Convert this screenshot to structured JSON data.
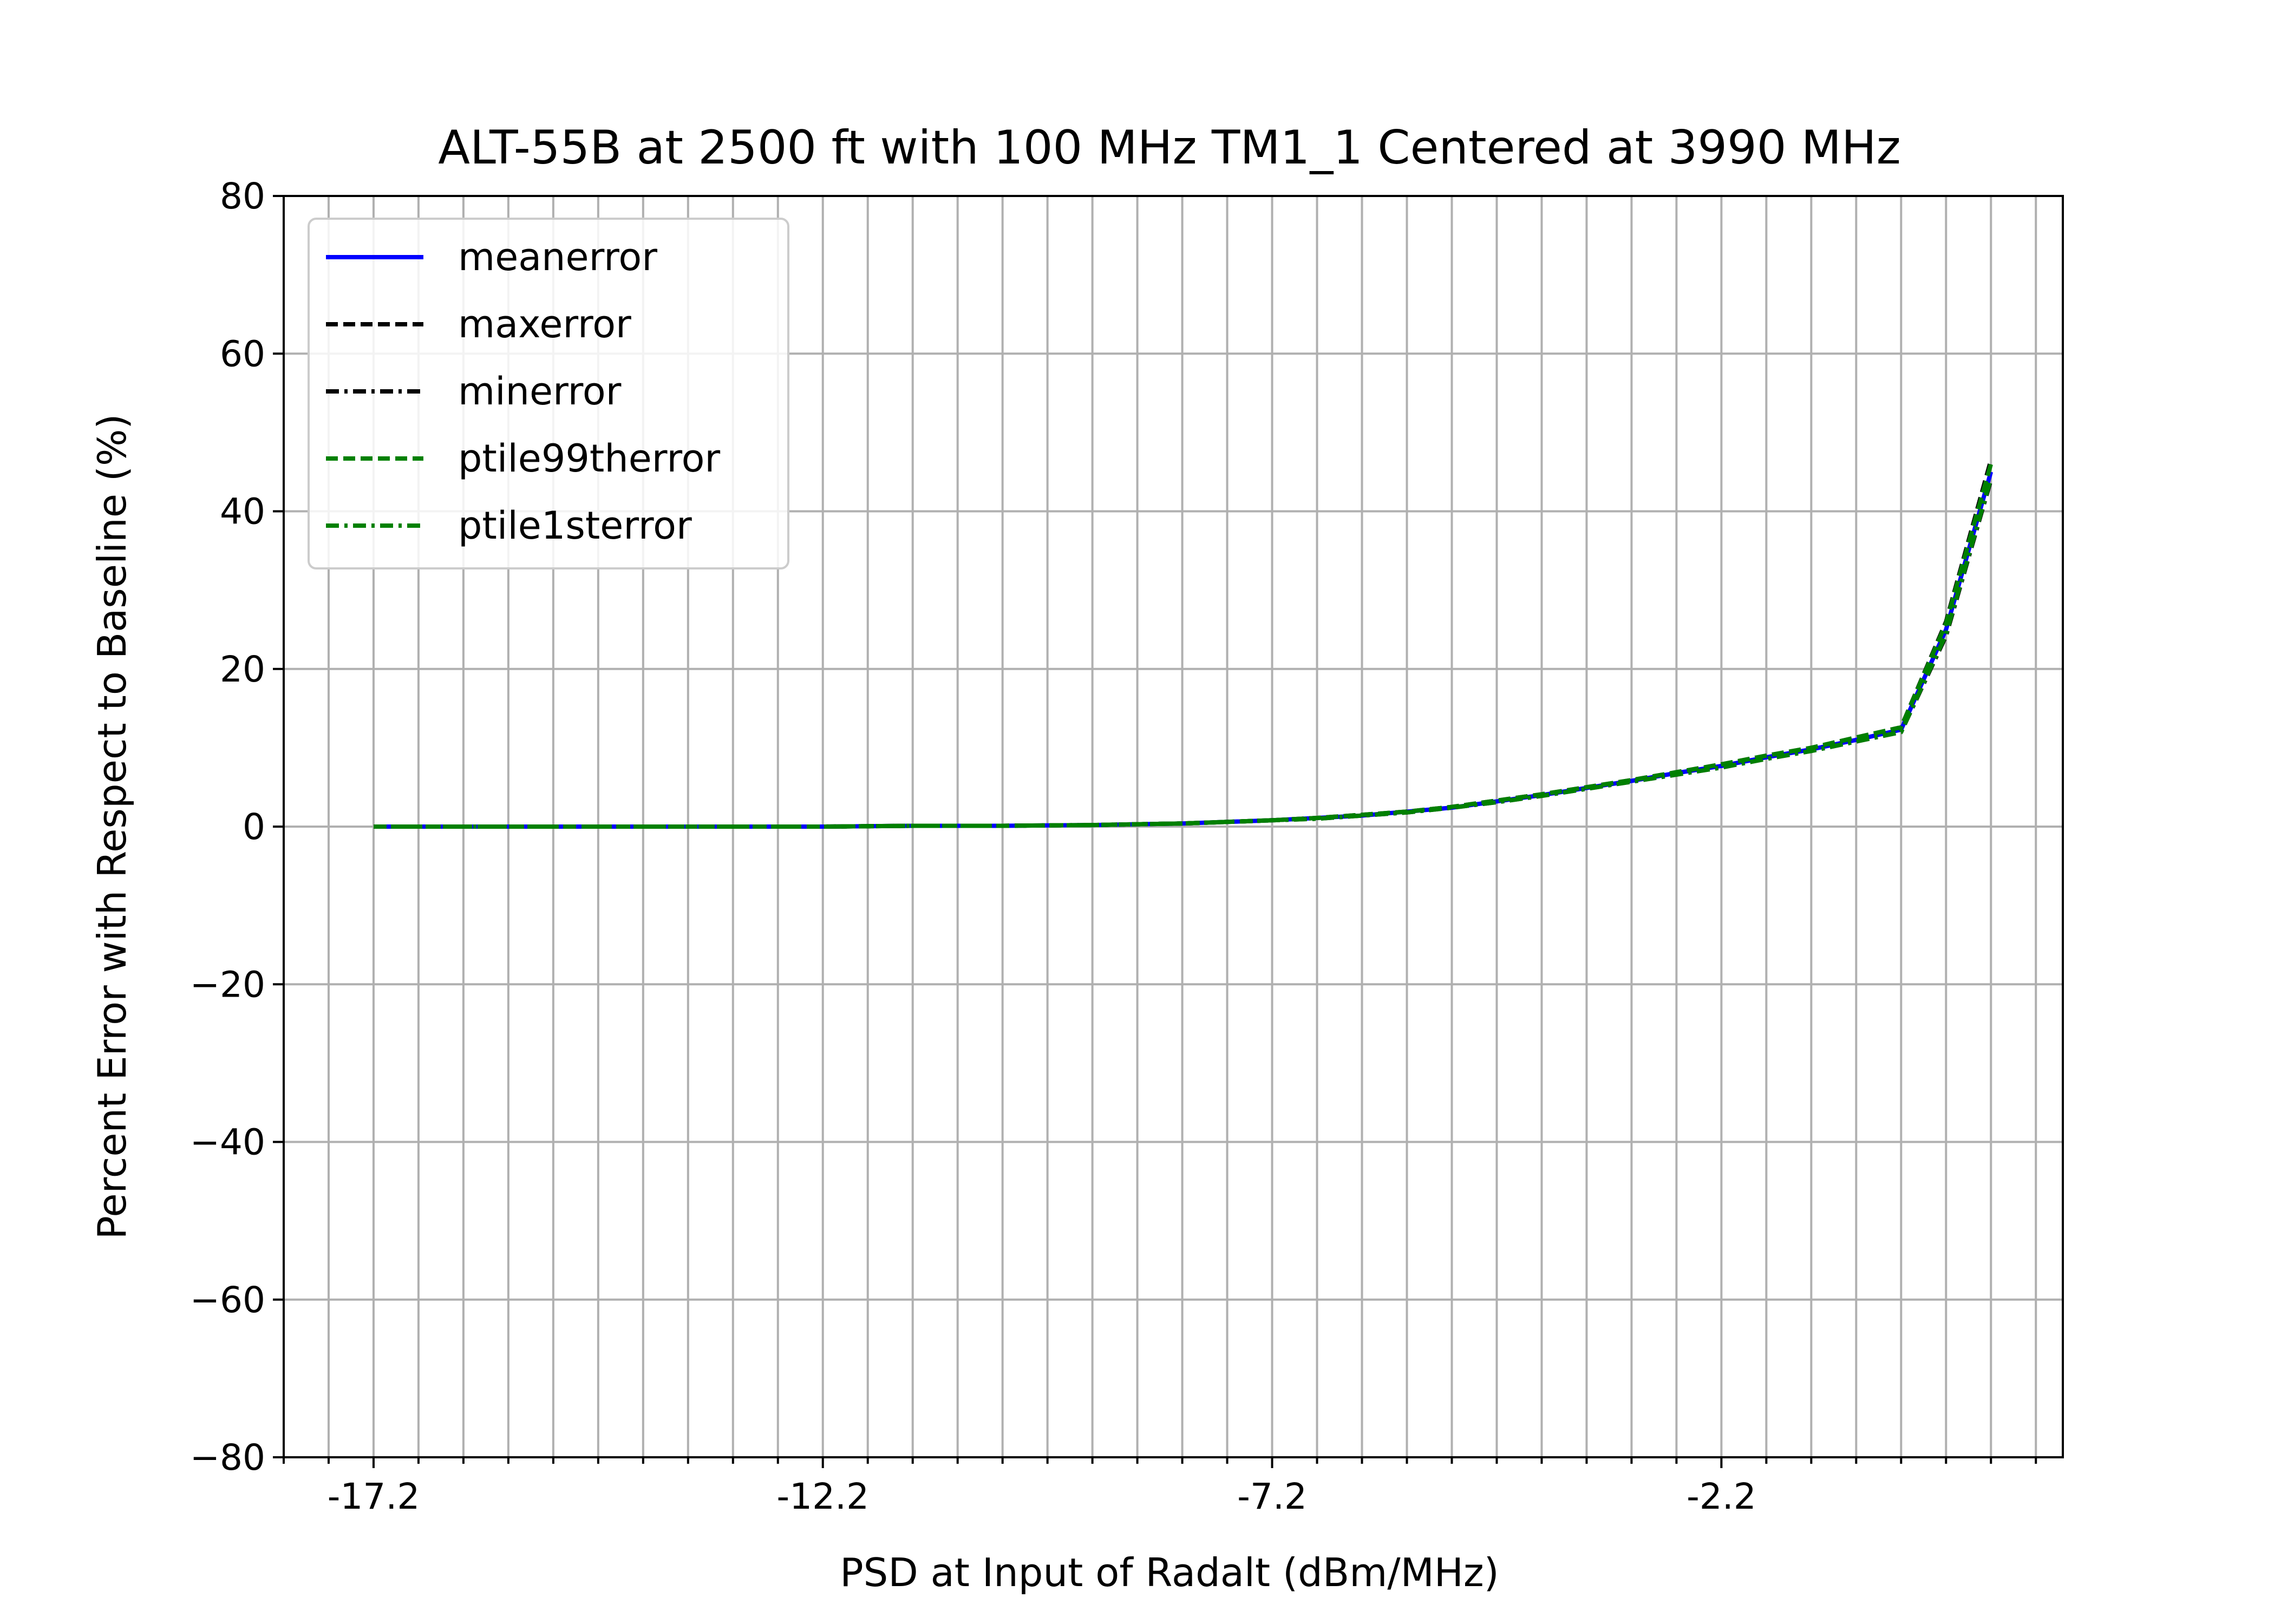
{
  "chart_data": {
    "type": "line",
    "title": "ALT-55B at 2500 ft with 100 MHz TM1_1 Centered at 3990 MHz",
    "xlabel": "PSD at Input of Radalt (dBm/MHz)",
    "ylabel": "Percent Error with Respect to Baseline (%)",
    "xlim": [
      -18.2,
      1.6
    ],
    "ylim": [
      -80,
      80
    ],
    "xticks_labeled": [
      -17.2,
      -12.2,
      -7.2,
      -2.2
    ],
    "xtick_labels": [
      "-17.2",
      "-12.2",
      "-7.2",
      "-2.2"
    ],
    "xticks_minor_step": 0.5,
    "yticks": [
      -80,
      -60,
      -40,
      -20,
      0,
      20,
      40,
      60,
      80
    ],
    "ytick_labels": [
      "−80",
      "−60",
      "−40",
      "−20",
      "0",
      "20",
      "40",
      "60",
      "80"
    ],
    "grid": true,
    "legend_position": "top-left",
    "series": [
      {
        "name": "meanerror",
        "color": "#0000ff",
        "style": "solid",
        "x": [
          -17.2,
          -16.2,
          -15.2,
          -14.2,
          -13.2,
          -12.2,
          -11.2,
          -10.2,
          -9.2,
          -8.7,
          -8.2,
          -7.7,
          -7.2,
          -6.7,
          -6.2,
          -5.7,
          -5.2,
          -4.7,
          -4.2,
          -3.7,
          -3.2,
          -2.7,
          -2.2,
          -1.7,
          -1.2,
          -0.7,
          -0.2,
          0.3,
          0.8
        ],
        "y": [
          0.0,
          0.0,
          0.0,
          0.0,
          0.0,
          0.0,
          0.1,
          0.1,
          0.2,
          0.3,
          0.4,
          0.6,
          0.8,
          1.1,
          1.4,
          1.9,
          2.4,
          3.2,
          4.0,
          4.9,
          5.8,
          6.8,
          7.7,
          8.8,
          9.8,
          11.0,
          12.3,
          25.0,
          45.0
        ]
      },
      {
        "name": "maxerror",
        "color": "#000000",
        "style": "dashed",
        "x": [
          -17.2,
          -16.2,
          -15.2,
          -14.2,
          -13.2,
          -12.2,
          -11.2,
          -10.2,
          -9.2,
          -8.7,
          -8.2,
          -7.7,
          -7.2,
          -6.7,
          -6.2,
          -5.7,
          -5.2,
          -4.7,
          -4.2,
          -3.7,
          -3.2,
          -2.7,
          -2.2,
          -1.7,
          -1.2,
          -0.7,
          -0.2,
          0.3,
          0.8
        ],
        "y": [
          0.0,
          0.0,
          0.0,
          0.0,
          0.0,
          0.0,
          0.1,
          0.1,
          0.2,
          0.3,
          0.4,
          0.6,
          0.8,
          1.1,
          1.5,
          1.9,
          2.5,
          3.3,
          4.1,
          5.0,
          5.9,
          6.9,
          7.9,
          9.0,
          10.0,
          11.3,
          12.6,
          26.0,
          46.5
        ]
      },
      {
        "name": "minerror",
        "color": "#000000",
        "style": "dashdot",
        "x": [
          -17.2,
          -16.2,
          -15.2,
          -14.2,
          -13.2,
          -12.2,
          -11.2,
          -10.2,
          -9.2,
          -8.7,
          -8.2,
          -7.7,
          -7.2,
          -6.7,
          -6.2,
          -5.7,
          -5.2,
          -4.7,
          -4.2,
          -3.7,
          -3.2,
          -2.7,
          -2.2,
          -1.7,
          -1.2,
          -0.7,
          -0.2,
          0.3,
          0.8
        ],
        "y": [
          0.0,
          0.0,
          0.0,
          0.0,
          0.0,
          0.0,
          0.1,
          0.1,
          0.2,
          0.3,
          0.4,
          0.6,
          0.8,
          1.0,
          1.4,
          1.8,
          2.4,
          3.1,
          3.9,
          4.8,
          5.7,
          6.6,
          7.5,
          8.6,
          9.6,
          10.8,
          12.0,
          24.2,
          44.0
        ]
      },
      {
        "name": "ptile99therror",
        "color": "#008000",
        "style": "dashed",
        "x": [
          -17.2,
          -16.2,
          -15.2,
          -14.2,
          -13.2,
          -12.2,
          -11.2,
          -10.2,
          -9.2,
          -8.7,
          -8.2,
          -7.7,
          -7.2,
          -6.7,
          -6.2,
          -5.7,
          -5.2,
          -4.7,
          -4.2,
          -3.7,
          -3.2,
          -2.7,
          -2.2,
          -1.7,
          -1.2,
          -0.7,
          -0.2,
          0.3,
          0.8
        ],
        "y": [
          0.0,
          0.0,
          0.0,
          0.0,
          0.0,
          0.0,
          0.1,
          0.1,
          0.2,
          0.3,
          0.4,
          0.6,
          0.8,
          1.1,
          1.5,
          1.9,
          2.5,
          3.3,
          4.1,
          5.0,
          5.9,
          6.9,
          7.9,
          9.0,
          10.0,
          11.3,
          12.6,
          25.8,
          46.0
        ]
      },
      {
        "name": "ptile1sterror",
        "color": "#008000",
        "style": "dashdot",
        "x": [
          -17.2,
          -16.2,
          -15.2,
          -14.2,
          -13.2,
          -12.2,
          -11.2,
          -10.2,
          -9.2,
          -8.7,
          -8.2,
          -7.7,
          -7.2,
          -6.7,
          -6.2,
          -5.7,
          -5.2,
          -4.7,
          -4.2,
          -3.7,
          -3.2,
          -2.7,
          -2.2,
          -1.7,
          -1.2,
          -0.7,
          -0.2,
          0.3,
          0.8
        ],
        "y": [
          0.0,
          0.0,
          0.0,
          0.0,
          0.0,
          0.0,
          0.1,
          0.1,
          0.2,
          0.3,
          0.4,
          0.6,
          0.8,
          1.0,
          1.4,
          1.8,
          2.4,
          3.1,
          3.9,
          4.8,
          5.7,
          6.6,
          7.5,
          8.6,
          9.6,
          10.8,
          12.0,
          24.4,
          44.2
        ]
      }
    ]
  }
}
